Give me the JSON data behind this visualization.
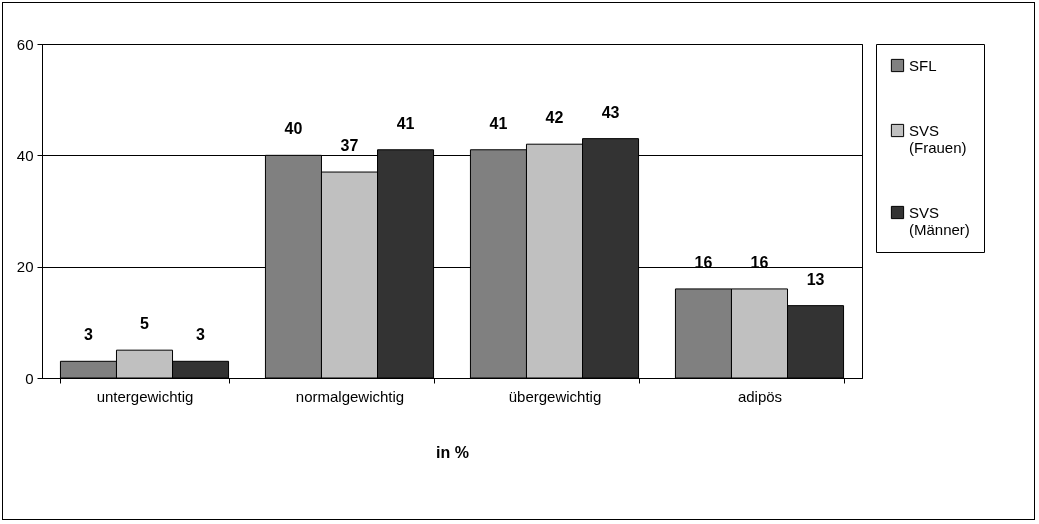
{
  "chart_data": {
    "type": "bar",
    "xlabel": "in %",
    "categories": [
      "untergewichtig",
      "normalgewichtig",
      "übergewichtig",
      "adipös"
    ],
    "series": [
      {
        "name": "SFL",
        "color": "#808080",
        "values": [
          3,
          40,
          41,
          16
        ]
      },
      {
        "name": "SVS (Frauen)",
        "color": "#c0c0c0",
        "values": [
          5,
          37,
          42,
          16
        ]
      },
      {
        "name": "SVS (Männer)",
        "color": "#333333",
        "values": [
          3,
          41,
          43,
          13
        ]
      }
    ],
    "ylim": [
      0,
      60
    ],
    "yticks": [
      0,
      20,
      40,
      60
    ],
    "grid": "y",
    "legend": "right",
    "data_labels": true
  }
}
